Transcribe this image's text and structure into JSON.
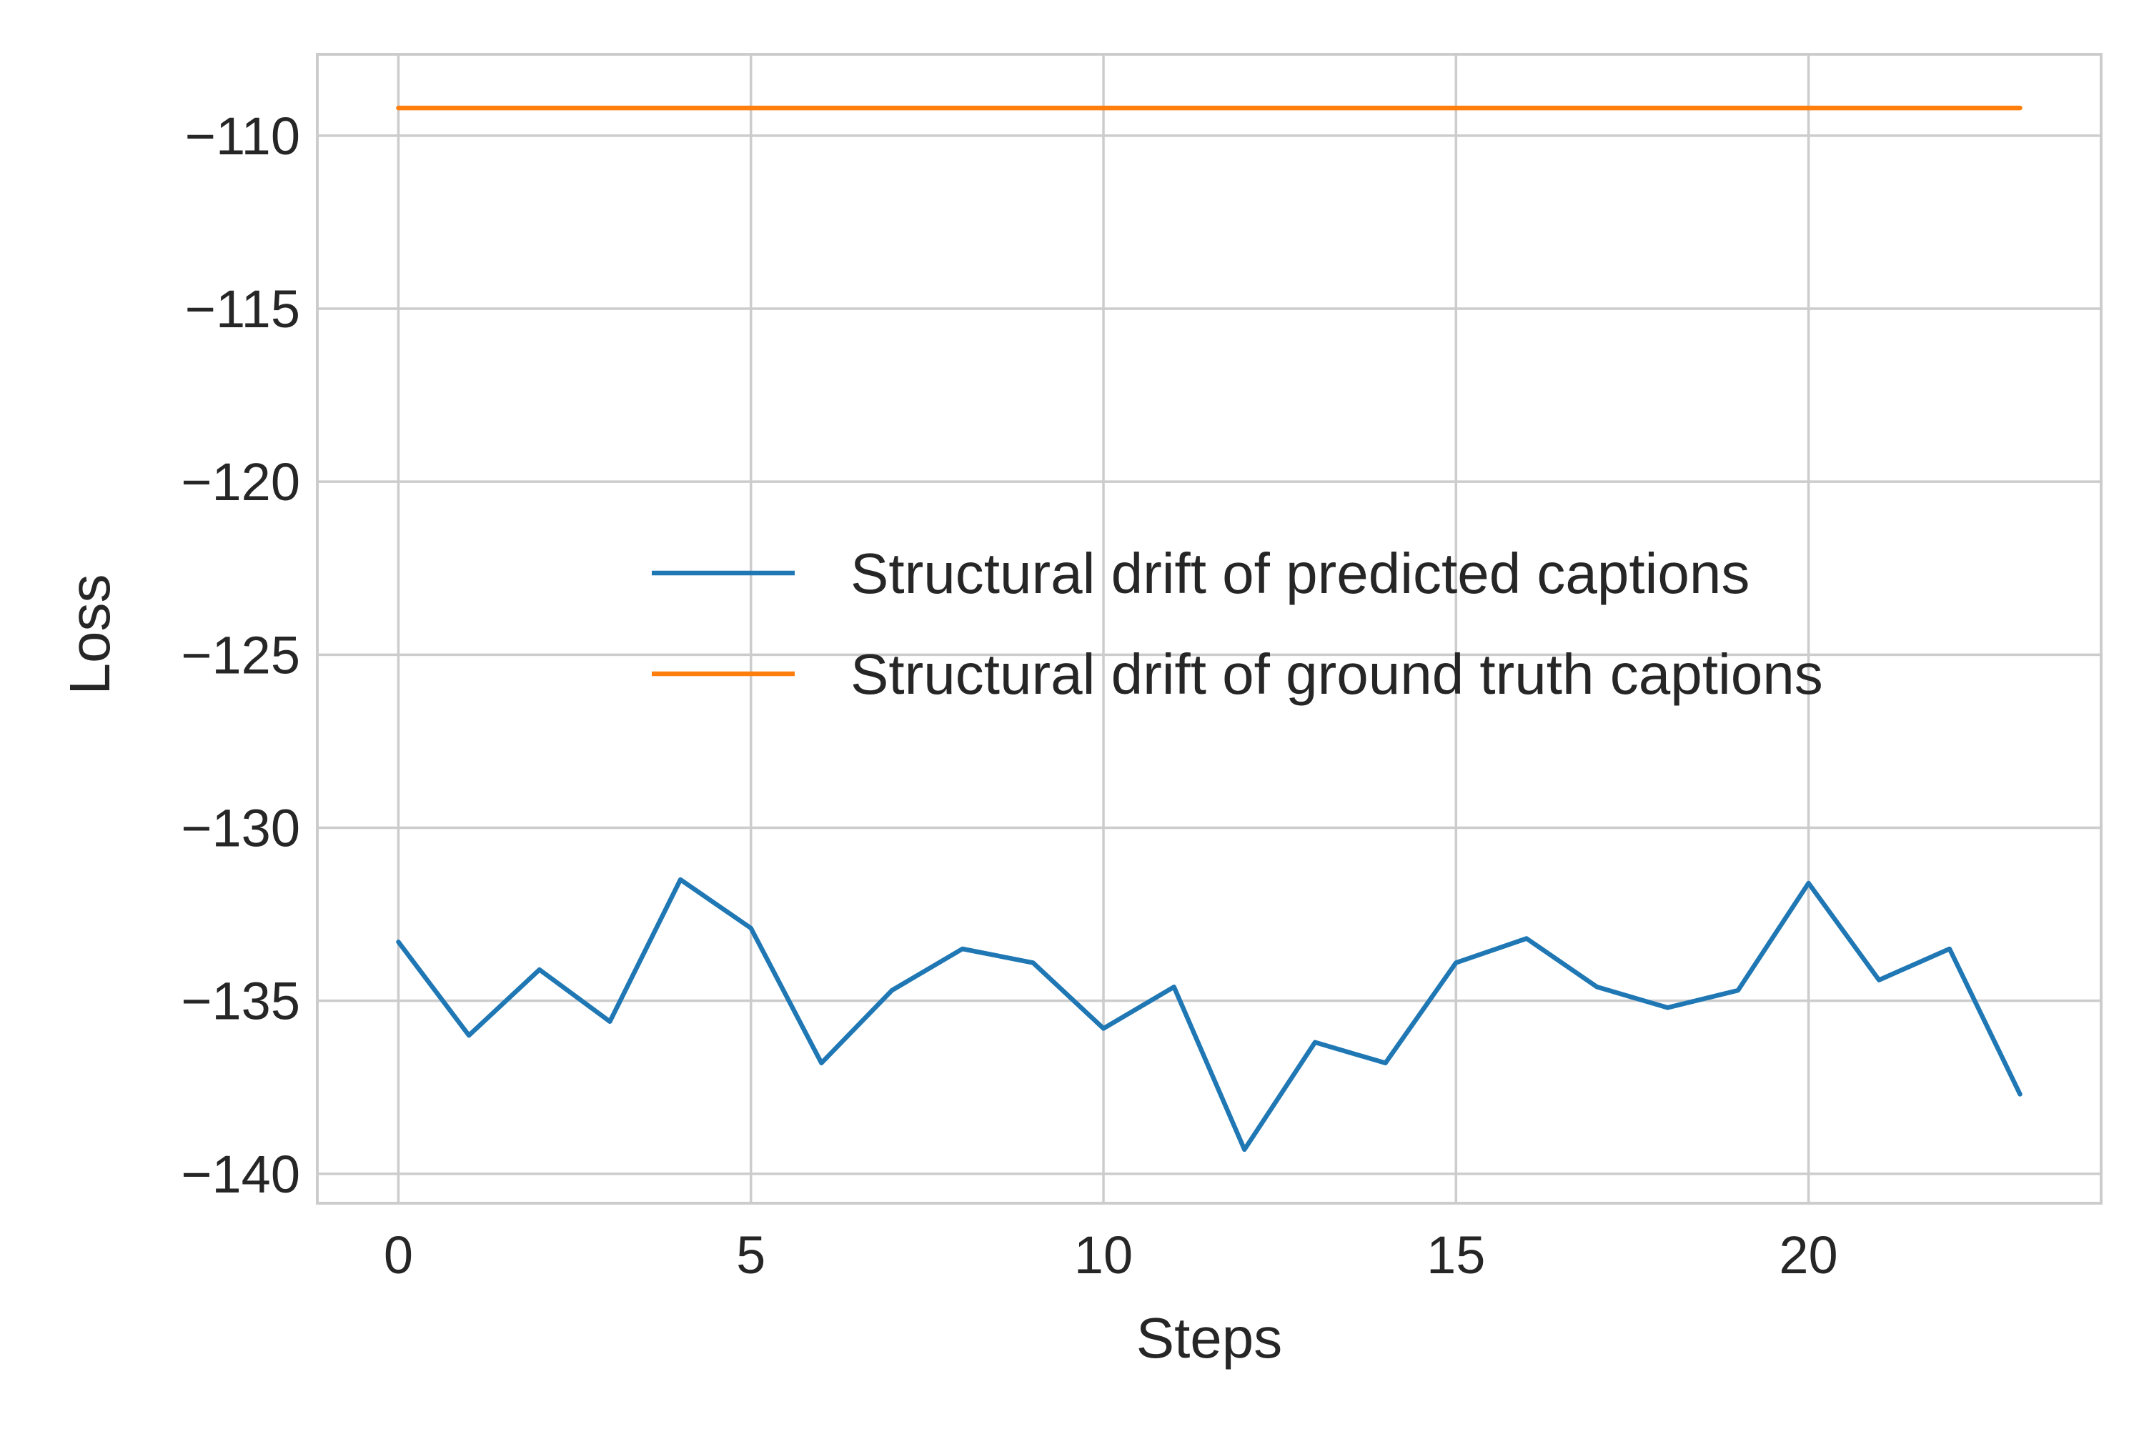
{
  "chart_data": {
    "type": "line",
    "title": "",
    "xlabel": "Steps",
    "ylabel": "Loss",
    "xlim": [
      -1.15,
      24.15
    ],
    "ylim": [
      -140.85,
      -107.65
    ],
    "xticks": [
      0,
      5,
      10,
      15,
      20
    ],
    "xtick_labels": [
      "0",
      "5",
      "10",
      "15",
      "20"
    ],
    "yticks": [
      -110,
      -115,
      -120,
      -125,
      -130,
      -135,
      -140
    ],
    "ytick_labels": [
      "−110",
      "−115",
      "−120",
      "−125",
      "−130",
      "−135",
      "−140"
    ],
    "grid": true,
    "legend_position": "center-right",
    "x": [
      0,
      1,
      2,
      3,
      4,
      5,
      6,
      7,
      8,
      9,
      10,
      11,
      12,
      13,
      14,
      15,
      16,
      17,
      18,
      19,
      20,
      21,
      22,
      23
    ],
    "series": [
      {
        "name": "Structural drift of predicted captions",
        "color": "#1f77b4",
        "values": [
          -133.3,
          -136.0,
          -134.1,
          -135.6,
          -131.5,
          -132.9,
          -136.8,
          -134.7,
          -133.5,
          -133.9,
          -135.8,
          -134.6,
          -139.3,
          -136.2,
          -136.8,
          -133.9,
          -133.2,
          -134.6,
          -135.2,
          -134.7,
          -131.6,
          -134.4,
          -133.5,
          -137.7
        ]
      },
      {
        "name": "Structural drift of ground truth captions",
        "color": "#ff7f0e",
        "values": [
          -109.2,
          -109.2,
          -109.2,
          -109.2,
          -109.2,
          -109.2,
          -109.2,
          -109.2,
          -109.2,
          -109.2,
          -109.2,
          -109.2,
          -109.2,
          -109.2,
          -109.2,
          -109.2,
          -109.2,
          -109.2,
          -109.2,
          -109.2,
          -109.2,
          -109.2,
          -109.2,
          -109.2
        ]
      }
    ]
  }
}
